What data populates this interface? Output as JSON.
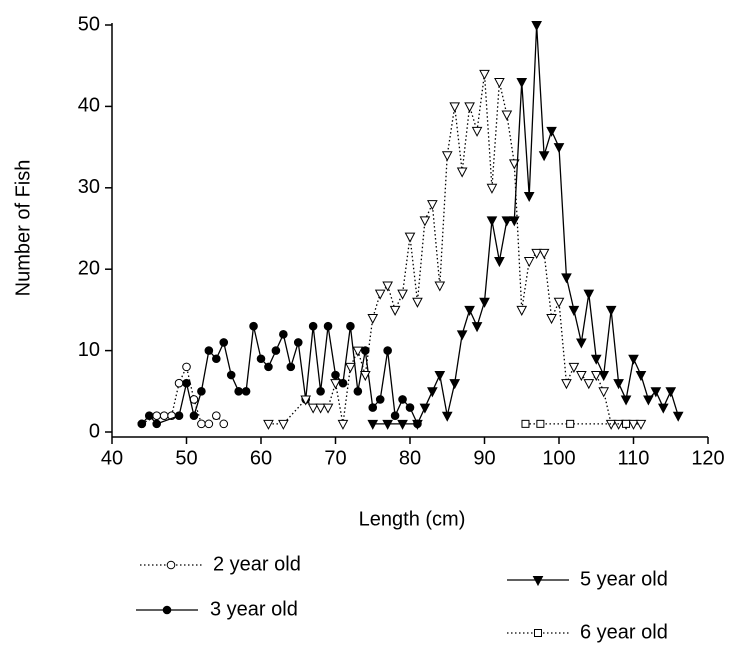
{
  "chart_data": {
    "type": "line",
    "xlabel": "Length (cm)",
    "ylabel": "Number of Fish",
    "xlim": [
      40,
      120
    ],
    "xticks": [
      40,
      50,
      60,
      70,
      80,
      90,
      100,
      110,
      120
    ],
    "ylim": [
      0,
      50
    ],
    "yticks": [
      0,
      10,
      20,
      30,
      40,
      50
    ],
    "series": [
      {
        "name": "2 year old",
        "color": "#000000",
        "marker": "circle",
        "filled": false,
        "line": "dotted",
        "x": [
          44,
          46,
          47,
          48,
          49,
          50,
          51,
          52,
          53,
          54,
          55
        ],
        "values": [
          1,
          2,
          2,
          2,
          6,
          8,
          4,
          1,
          1,
          2,
          1
        ]
      },
      {
        "name": "3 year old",
        "color": "#000000",
        "marker": "circle",
        "filled": true,
        "line": "solid",
        "x": [
          44,
          45,
          46,
          49,
          50,
          51,
          52,
          53,
          54,
          55,
          56,
          57,
          58,
          59,
          60,
          61,
          62,
          63,
          64,
          65,
          66,
          67,
          68,
          69,
          70,
          71,
          72,
          73,
          74,
          75,
          76,
          77,
          78,
          79,
          80,
          81
        ],
        "values": [
          1,
          2,
          1,
          2,
          6,
          2,
          5,
          10,
          9,
          11,
          7,
          5,
          5,
          13,
          9,
          8,
          10,
          12,
          8,
          11,
          4,
          13,
          5,
          13,
          7,
          6,
          13,
          5,
          10,
          3,
          4,
          10,
          2,
          4,
          3,
          1
        ]
      },
      {
        "color": "#000000",
        "marker": "triangle-down",
        "filled": false,
        "line": "dotted",
        "x": [
          61,
          63,
          66,
          67,
          68,
          69,
          70,
          71,
          72,
          73,
          74,
          75,
          76,
          77,
          78,
          79,
          80,
          81,
          82,
          83,
          84,
          85,
          86,
          87,
          88,
          89,
          90,
          91,
          92,
          93,
          94,
          95,
          96,
          97,
          98,
          99,
          100,
          101,
          102,
          103,
          104,
          105,
          106,
          107,
          108,
          109,
          110,
          111
        ],
        "values": [
          1,
          1,
          4,
          3,
          3,
          3,
          6,
          1,
          8,
          10,
          7,
          14,
          17,
          18,
          15,
          17,
          24,
          16,
          26,
          28,
          18,
          34,
          40,
          32,
          40,
          37,
          44,
          30,
          43,
          39,
          33,
          15,
          21,
          22,
          22,
          14,
          16,
          6,
          8,
          7,
          6,
          7,
          5,
          1,
          1,
          1,
          1,
          1
        ]
      },
      {
        "name": "5 year old",
        "color": "#000000",
        "marker": "triangle-down",
        "filled": true,
        "line": "solid",
        "x": [
          75,
          77,
          79,
          81,
          82,
          83,
          84,
          85,
          86,
          87,
          88,
          89,
          90,
          91,
          92,
          93,
          94,
          95,
          96,
          97,
          98,
          99,
          100,
          101,
          102,
          103,
          104,
          105,
          106,
          107,
          108,
          109,
          110,
          111,
          112,
          113,
          114,
          115,
          116
        ],
        "values": [
          1,
          1,
          1,
          1,
          3,
          5,
          7,
          2,
          6,
          12,
          15,
          13,
          16,
          26,
          21,
          26,
          26,
          43,
          29,
          50,
          34,
          37,
          35,
          19,
          15,
          11,
          17,
          9,
          7,
          15,
          6,
          4,
          9,
          7,
          4,
          5,
          3,
          5,
          2
        ]
      },
      {
        "name": "6 year old",
        "color": "#000000",
        "marker": "square",
        "filled": false,
        "line": "dotted",
        "x": [
          95.5,
          97.5,
          101.5,
          109
        ],
        "values": [
          1,
          1,
          1,
          1
        ]
      }
    ]
  }
}
